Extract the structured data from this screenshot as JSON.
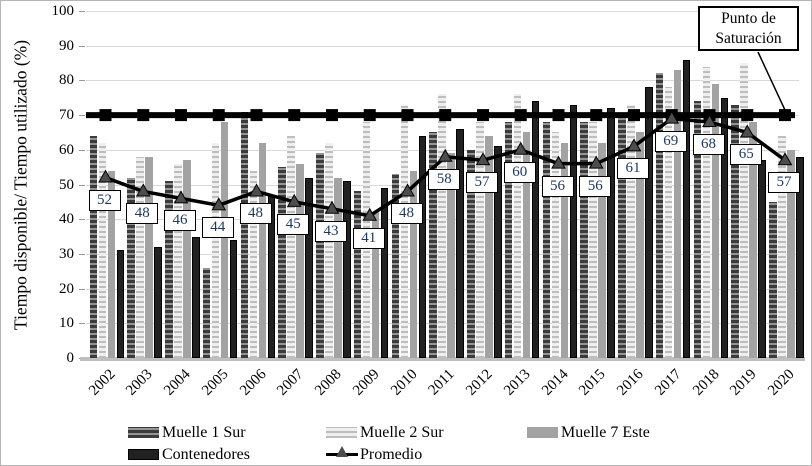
{
  "chart_data": {
    "type": "bar",
    "title": "",
    "ylabel": "Tiempo disponible/ Tiempo utilizado (%)",
    "xlabel": "",
    "ylim": [
      0,
      100
    ],
    "ytick_step": 10,
    "ytick_labels": [
      "0",
      "10",
      "20",
      "30",
      "40",
      "50",
      "60",
      "70",
      "80",
      "90",
      "100"
    ],
    "grid": "horizontal",
    "legend_position": "bottom",
    "categories": [
      "2002",
      "2003",
      "2004",
      "2005",
      "2006",
      "2007",
      "2008",
      "2009",
      "2010",
      "2011",
      "2012",
      "2013",
      "2014",
      "2015",
      "2016",
      "2017",
      "2018",
      "2019",
      "2020"
    ],
    "series": [
      {
        "name": "Muelle 1 Sur",
        "type": "bar",
        "style": "dark-stripes",
        "values": [
          64,
          52,
          51,
          26,
          71,
          55,
          59,
          48,
          53,
          65,
          60,
          68,
          68,
          68,
          70,
          82,
          74,
          73,
          45
        ]
      },
      {
        "name": "Muelle 2 Sur",
        "type": "bar",
        "style": "light-stripes",
        "values": [
          62,
          58,
          56,
          62,
          54,
          64,
          62,
          68,
          73,
          76,
          68,
          76,
          65,
          68,
          73,
          78,
          84,
          85,
          64
        ]
      },
      {
        "name": "Muelle 7 Este",
        "type": "bar",
        "style": "solid-gray",
        "values": [
          54,
          58,
          57,
          68,
          62,
          56,
          52,
          42,
          54,
          59,
          64,
          65,
          62,
          62,
          65,
          83,
          79,
          68,
          60
        ]
      },
      {
        "name": "Contenedores",
        "type": "bar",
        "style": "solid-black",
        "values": [
          31,
          32,
          35,
          34,
          47,
          52,
          51,
          49,
          64,
          66,
          61,
          74,
          73,
          72,
          78,
          86,
          75,
          57,
          58
        ]
      },
      {
        "name": "Promedio",
        "type": "line",
        "style": "black-line-triangle-markers",
        "data_labels": true,
        "values": [
          52,
          48,
          46,
          44,
          48,
          45,
          43,
          41,
          48,
          58,
          57,
          60,
          56,
          56,
          61,
          69,
          68,
          65,
          57
        ]
      }
    ],
    "saturation_line": {
      "value": 70,
      "label": "Punto de Saturación",
      "label_lines": [
        "Punto de",
        "Saturación"
      ],
      "style": "thick-black-line-square-markers"
    }
  },
  "colors": {
    "background": "#ffffff",
    "gridline": "#d9d9d9",
    "axis_line": "#bfbfbf",
    "bar_muelle1_stripe_dark": "#3b3b3b",
    "bar_muelle1_stripe_light": "#949494",
    "bar_muelle2_stripe_dark": "#bdbdbd",
    "bar_muelle2_stripe_light": "#efefef",
    "bar_muelle7": "#a3a3a3",
    "bar_contenedores": "#212121",
    "promedio_line": "#000000",
    "promedio_marker": "#4d4d4d",
    "saturation_line": "#000000",
    "value_label_text": "#1f3864"
  }
}
